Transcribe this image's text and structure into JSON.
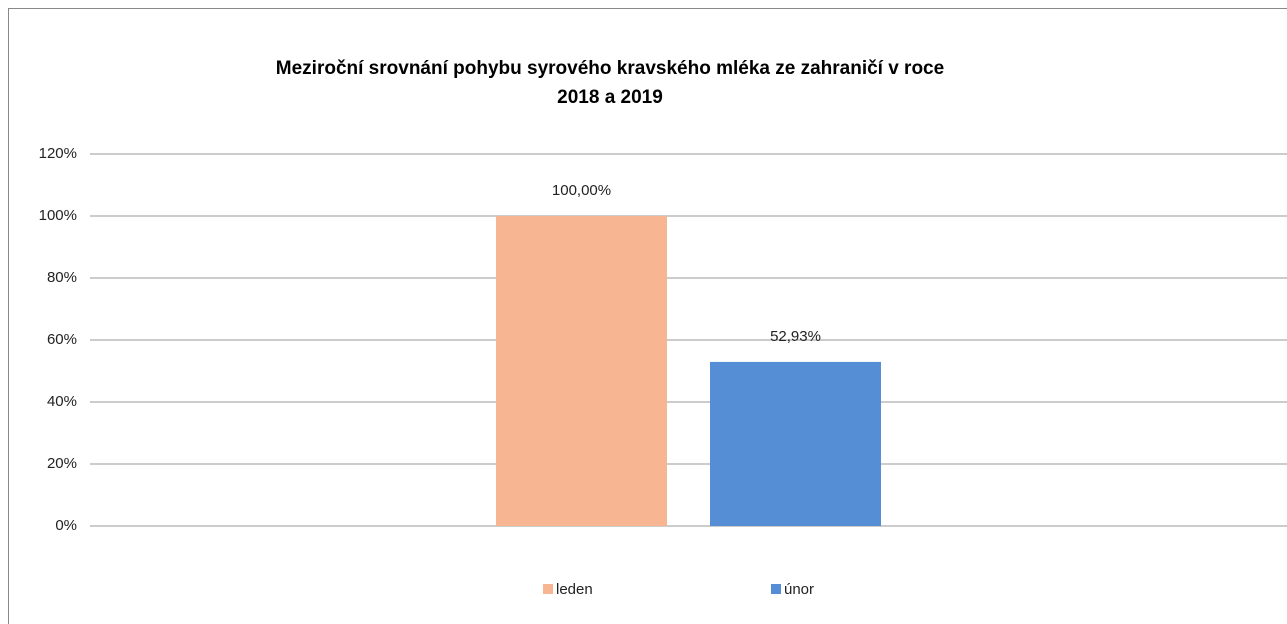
{
  "chart_data": {
    "type": "bar",
    "title": [
      "Meziroční srovnání pohybu syrového kravského mléka ze zahraničí v roce",
      "2018 a 2019"
    ],
    "categories": [
      null
    ],
    "series": [
      {
        "name": "leden",
        "color": "#f8b592",
        "values": [
          100
        ],
        "value_labels": [
          "100,00%"
        ]
      },
      {
        "name": "únor",
        "color": "#558ed5",
        "values": [
          52.93
        ],
        "value_labels": [
          "52,93%"
        ]
      }
    ],
    "ylim": [
      0,
      120
    ],
    "yticks": [
      {
        "value": 0,
        "label": "0%"
      },
      {
        "value": 20,
        "label": "20%"
      },
      {
        "value": 40,
        "label": "40%"
      },
      {
        "value": 60,
        "label": "60%"
      },
      {
        "value": 80,
        "label": "80%"
      },
      {
        "value": 100,
        "label": "100%"
      },
      {
        "value": 120,
        "label": "120%"
      }
    ],
    "grid": true,
    "legend": "bottom"
  }
}
